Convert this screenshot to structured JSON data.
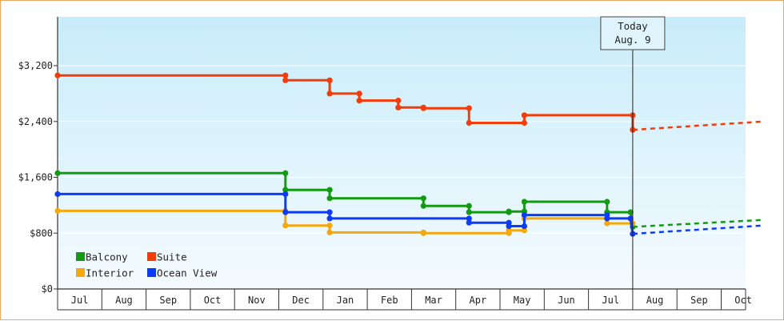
{
  "chart_data": {
    "type": "line",
    "title": "",
    "xlabel": "",
    "ylabel": "",
    "ylim": [
      0,
      3900
    ],
    "y_ticks": [
      "$0",
      "$800",
      "$1,600",
      "$2,400",
      "$3,200"
    ],
    "y_tick_values": [
      0,
      800,
      1600,
      2400,
      3200
    ],
    "x_ticks": [
      "Jul",
      "Aug",
      "Sep",
      "Oct",
      "Nov",
      "Dec",
      "Jan",
      "Feb",
      "Mar",
      "Apr",
      "May",
      "Jun",
      "Jul",
      "Aug",
      "Sep",
      "Oct"
    ],
    "legend": {
      "placement": "bottom-left"
    },
    "today": {
      "line1": "Today",
      "line2": "Aug. 9",
      "x": 13.0
    },
    "series": [
      {
        "name": "Balcony",
        "color": "#129b12",
        "x": [
          0.0,
          5.15,
          5.15,
          6.15,
          6.15,
          8.27,
          8.27,
          9.3,
          9.3,
          10.2,
          10.2,
          10.55,
          10.55,
          12.42,
          12.42,
          12.95,
          13.0
        ],
        "y": [
          1660,
          1660,
          1420,
          1420,
          1300,
          1300,
          1190,
          1190,
          1100,
          1100,
          1110,
          1110,
          1250,
          1250,
          1100,
          1100,
          890
        ],
        "projection_x": [
          13.0,
          15.95
        ],
        "projection_y": [
          890,
          990
        ]
      },
      {
        "name": "Suite",
        "color": "#f23c0a",
        "x": [
          0.0,
          5.15,
          5.15,
          6.15,
          6.15,
          6.82,
          6.82,
          7.7,
          7.7,
          8.27,
          8.27,
          9.3,
          9.3,
          10.55,
          10.55,
          13.0,
          13.0
        ],
        "y": [
          3060,
          3060,
          2990,
          2990,
          2800,
          2800,
          2700,
          2700,
          2600,
          2600,
          2590,
          2590,
          2380,
          2380,
          2490,
          2490,
          2280
        ],
        "projection_x": [
          13.0,
          15.95
        ],
        "projection_y": [
          2280,
          2400
        ]
      },
      {
        "name": "Interior",
        "color": "#f4a80e",
        "x": [
          0.0,
          5.15,
          5.15,
          6.15,
          6.15,
          8.27,
          8.27,
          10.2,
          10.2,
          10.55,
          10.55,
          12.42,
          12.42,
          13.0
        ],
        "y": [
          1120,
          1120,
          910,
          910,
          810,
          810,
          800,
          800,
          840,
          840,
          1010,
          1010,
          940,
          940
        ],
        "projection_x": [],
        "projection_y": []
      },
      {
        "name": "Ocean View",
        "color": "#0c3cf5",
        "x": [
          0.0,
          5.15,
          5.15,
          6.15,
          6.15,
          9.3,
          9.3,
          10.2,
          10.2,
          10.55,
          10.55,
          12.42,
          12.42,
          12.95,
          13.0
        ],
        "y": [
          1360,
          1360,
          1100,
          1100,
          1010,
          1010,
          950,
          950,
          900,
          900,
          1060,
          1060,
          1010,
          1010,
          790
        ],
        "projection_x": [
          13.0,
          15.95
        ],
        "projection_y": [
          790,
          910
        ]
      }
    ]
  }
}
